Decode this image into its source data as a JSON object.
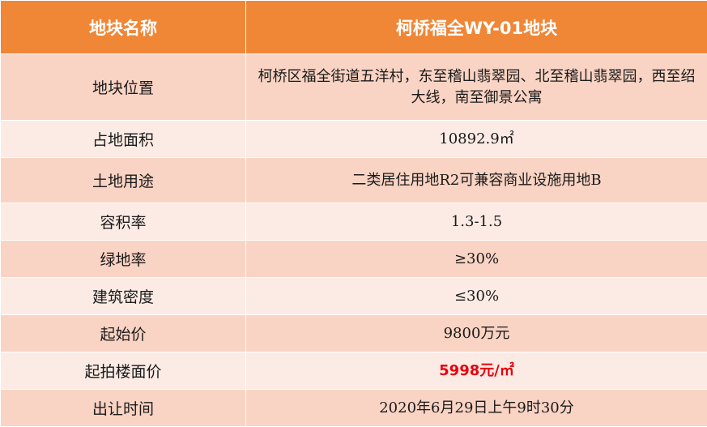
{
  "table": {
    "header": {
      "label": "地块名称",
      "value": "柯桥福全WY-01地块"
    },
    "rows": [
      {
        "label": "地块位置",
        "value": "柯桥区福全街道五洋村，东至稽山翡翠园、北至稽山翡翠园，西至绍大线，南至御景公寓"
      },
      {
        "label": "占地面积",
        "value": "10892.9㎡"
      },
      {
        "label": "土地用途",
        "value": "二类居住用地R2可兼容商业设施用地B"
      },
      {
        "label": "容积率",
        "value": "1.3-1.5"
      },
      {
        "label": "绿地率",
        "value": "≥30%"
      },
      {
        "label": "建筑密度",
        "value": "≤30%"
      },
      {
        "label": "起始价",
        "value": "9800万元"
      },
      {
        "label": "起拍楼面价",
        "value": "5998元/㎡"
      },
      {
        "label": "出让时间",
        "value": "2020年6月29日上午9时30分"
      }
    ]
  },
  "colors": {
    "header_bg": "#ef8737",
    "row_dark": "#f9d3c3",
    "row_light": "#fcebe4",
    "highlight_text": "#e8000e"
  }
}
